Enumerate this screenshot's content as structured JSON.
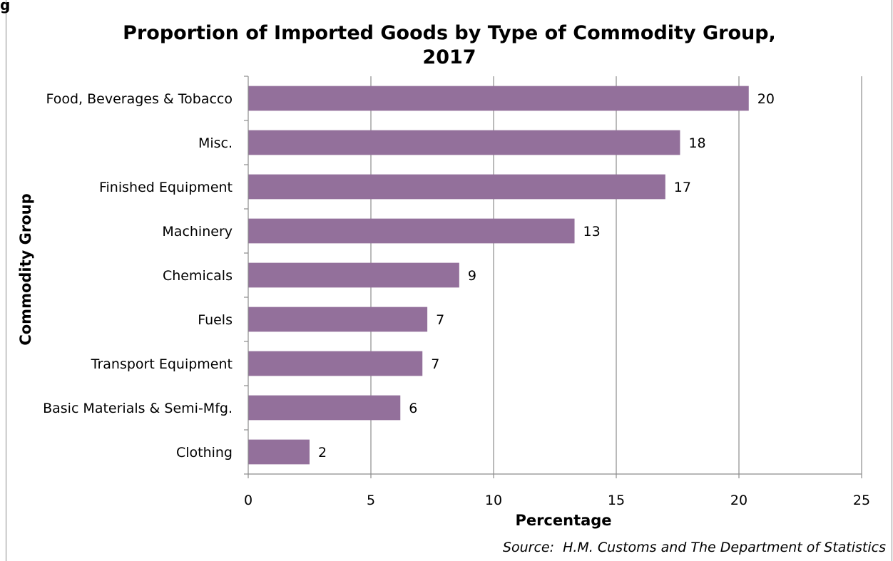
{
  "fragment": "g",
  "chart_data": {
    "type": "bar",
    "orientation": "horizontal",
    "title_line1": "Proportion of Imported Goods by Type of Commodity Group,",
    "title_line2": "2017",
    "xlabel": "Percentage",
    "ylabel": "Commodity Group",
    "categories": [
      "Food, Beverages & Tobacco",
      "Misc.",
      "Finished Equipment",
      "Machinery",
      "Chemicals",
      "Fuels",
      "Transport Equipment",
      "Basic Materials & Semi-Mfg.",
      "Clothing"
    ],
    "values": [
      20.4,
      17.6,
      17.0,
      13.3,
      8.6,
      7.3,
      7.1,
      6.2,
      2.5
    ],
    "data_labels": [
      "20",
      "18",
      "17",
      "13",
      "9",
      "7",
      "7",
      "6",
      "2"
    ],
    "xlim": [
      0,
      25
    ],
    "xticks": [
      "0",
      "5",
      "10",
      "15",
      "20",
      "25"
    ],
    "grid": "vertical",
    "bar_color": "#93709b",
    "source": "Source:  H.M. Customs and The Department of Statistics"
  }
}
